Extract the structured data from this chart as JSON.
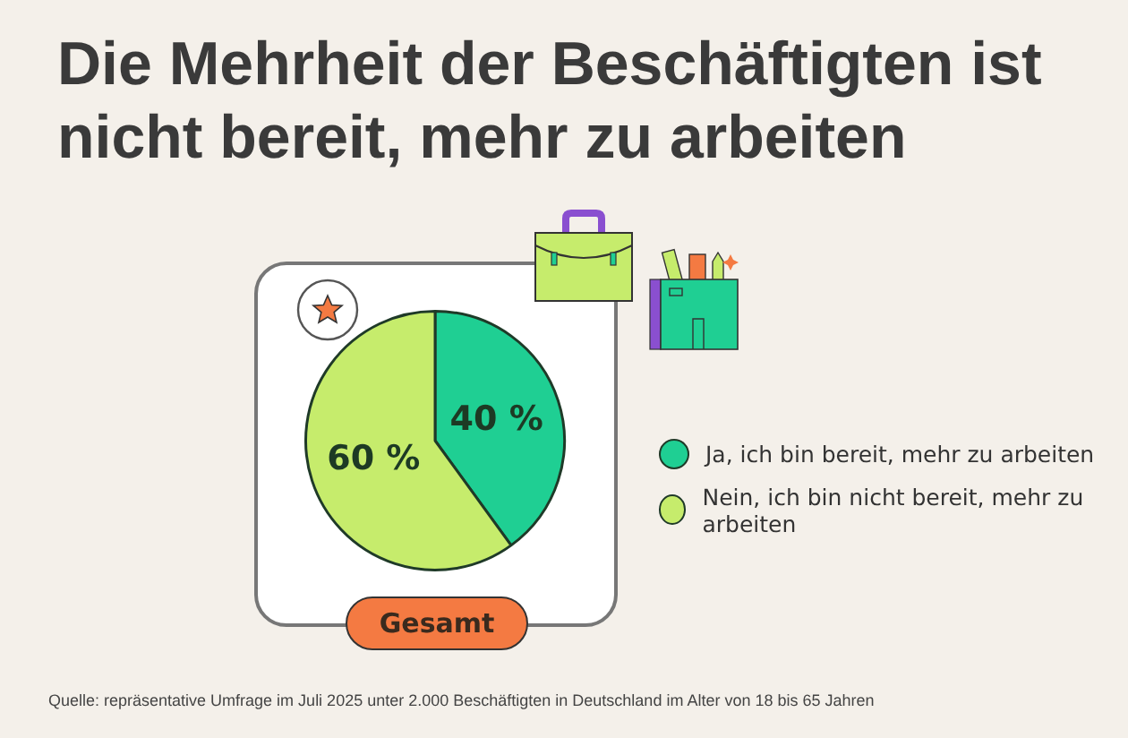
{
  "chart_data": {
    "type": "pie",
    "title": "Die Mehrheit der Beschäftigten ist nicht bereit, mehr zu arbeiten",
    "subtitle": "Gesamt",
    "categories": [
      "Ja, ich bin bereit, mehr zu arbeiten",
      "Nein, ich bin nicht bereit, mehr zu arbeiten"
    ],
    "values": [
      40,
      60
    ],
    "colors": [
      "#1fcf93",
      "#c6ec6c"
    ],
    "value_labels": [
      "40 %",
      "60 %"
    ],
    "legend": "right",
    "annotations": [
      "Quelle: repräsentative Umfrage im Juli 2025 unter 2.000 Beschäftigten in Deutschland im Alter von 18 bis 65 Jahren"
    ]
  }
}
